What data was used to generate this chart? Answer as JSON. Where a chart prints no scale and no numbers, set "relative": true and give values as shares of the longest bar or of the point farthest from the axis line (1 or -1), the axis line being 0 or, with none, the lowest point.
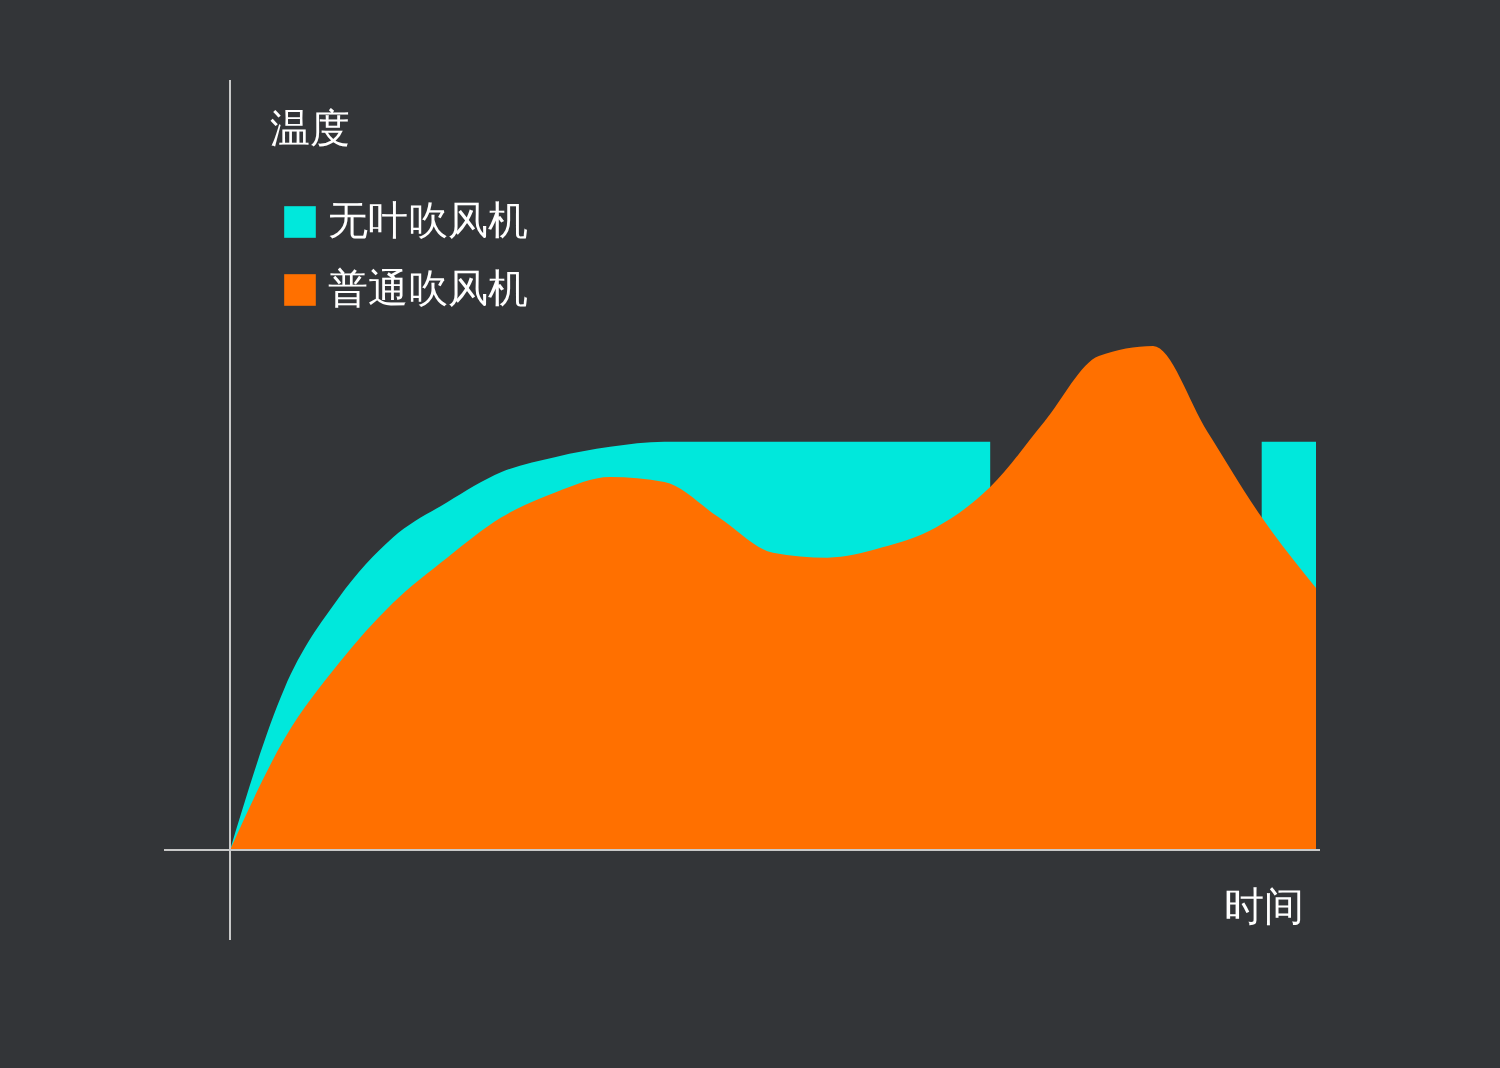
{
  "chart_data": {
    "type": "area",
    "relative": true,
    "ylabel": "温度",
    "xlabel": "时间",
    "legend": "top left",
    "grid": false,
    "categories": [
      null,
      null,
      null,
      null,
      null,
      null,
      null,
      null,
      null,
      null,
      null,
      null,
      null,
      null,
      null,
      null,
      null,
      null,
      null,
      null,
      null
    ],
    "series": [
      {
        "name": "无叶吹风机",
        "color": "#00e8dc",
        "values": [
          0,
          0.32,
          0.5,
          0.62,
          0.69,
          0.75,
          0.78,
          0.8,
          0.81,
          0.81,
          0.81,
          0.81,
          0.81,
          0.81,
          0.81,
          null,
          null,
          null,
          null,
          0.81,
          0.81
        ]
      },
      {
        "name": "普通吹风机",
        "color": "#ff7000",
        "values": [
          0,
          0.22,
          0.37,
          0.49,
          0.58,
          0.66,
          0.71,
          0.74,
          0.73,
          0.66,
          0.59,
          0.58,
          0.6,
          0.64,
          0.72,
          0.85,
          0.98,
          1.0,
          0.83,
          0.66,
          0.52
        ]
      }
    ]
  }
}
